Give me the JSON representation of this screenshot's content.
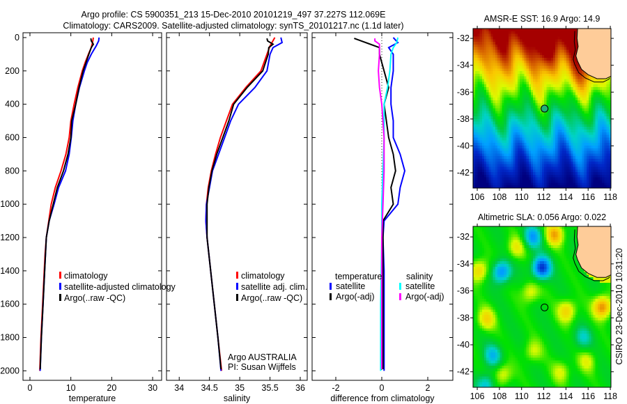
{
  "title_line1": "Argo profile: CS 5900351_213 15-Dec-2010 20101219_497 37.227S 112.069E",
  "title_line2": "Climatology: CARS2009. Satellite-adjusted climatology: synTS_20101217.nc (1.1d later)",
  "credit": "CSIRO 23-Dec-2010 10:31:20",
  "annotation": [
    "Argo AUSTRALIA",
    "PI: Susan Wijffels"
  ],
  "colors": {
    "climatology": "#ff0000",
    "satellite": "#0000ff",
    "argo": "#000000",
    "sal_satellite": "#00ffff",
    "sal_argo": "#ff00ff",
    "land": "#fecc99"
  },
  "chart_data": [
    {
      "type": "line",
      "xlabel": "temperature",
      "ylabel": "",
      "xlim": [
        -1.7,
        32.2
      ],
      "ylim": [
        2057,
        -29
      ],
      "xticks": [
        0,
        10,
        20,
        30
      ],
      "yticks": [
        0,
        200,
        400,
        600,
        800,
        1000,
        1200,
        1400,
        1600,
        1800,
        2000
      ],
      "legend": {
        "placement": "lower-middle",
        "entries": [
          "climatology",
          "satellite-adjusted climatology",
          "Argo(..raw -QC)"
        ]
      },
      "series": [
        {
          "name": "climatology",
          "color": "#ff0000",
          "points": [
            [
              0,
              15.5
            ],
            [
              30,
              15.3
            ],
            [
              60,
              15.0
            ],
            [
              100,
              14.3
            ],
            [
              150,
              13.5
            ],
            [
              200,
              12.8
            ],
            [
              300,
              11.7
            ],
            [
              400,
              10.8
            ],
            [
              500,
              10.0
            ],
            [
              600,
              9.6
            ],
            [
              700,
              8.8
            ],
            [
              800,
              7.6
            ],
            [
              900,
              6.2
            ],
            [
              1000,
              5.2
            ],
            [
              1100,
              4.6
            ],
            [
              1200,
              4.0
            ],
            [
              1300,
              3.7
            ],
            [
              1400,
              3.5
            ],
            [
              1600,
              3.1
            ],
            [
              1800,
              2.7
            ],
            [
              2000,
              2.4
            ]
          ]
        },
        {
          "name": "satellite-adjusted climatology",
          "color": "#0000ff",
          "points": [
            [
              0,
              16.9
            ],
            [
              20,
              16.8
            ],
            [
              50,
              16.2
            ],
            [
              100,
              15.0
            ],
            [
              150,
              14.0
            ],
            [
              200,
              13.3
            ],
            [
              300,
              12.1
            ],
            [
              400,
              11.2
            ],
            [
              500,
              10.5
            ],
            [
              600,
              10.1
            ],
            [
              700,
              9.6
            ],
            [
              800,
              8.7
            ],
            [
              900,
              7.0
            ],
            [
              1000,
              5.9
            ],
            [
              1100,
              4.7
            ],
            [
              1200,
              4.0
            ],
            [
              1400,
              3.6
            ],
            [
              1600,
              3.2
            ],
            [
              1800,
              2.8
            ],
            [
              2000,
              2.5
            ]
          ]
        },
        {
          "name": "Argo(..raw -QC)",
          "color": "#000000",
          "points": [
            [
              5,
              14.9
            ],
            [
              20,
              15.0
            ],
            [
              40,
              15.5
            ],
            [
              60,
              15.0
            ],
            [
              100,
              14.4
            ],
            [
              200,
              13.0
            ],
            [
              300,
              12.0
            ],
            [
              400,
              11.2
            ],
            [
              500,
              10.2
            ],
            [
              600,
              10.0
            ],
            [
              700,
              9.3
            ],
            [
              800,
              8.2
            ],
            [
              900,
              6.7
            ],
            [
              1000,
              5.7
            ],
            [
              1100,
              4.7
            ],
            [
              1200,
              4.0
            ],
            [
              1400,
              3.6
            ],
            [
              1600,
              3.2
            ],
            [
              1800,
              2.8
            ],
            [
              1990,
              2.5
            ]
          ]
        }
      ]
    },
    {
      "type": "line",
      "xlabel": "salinity",
      "xlim": [
        33.79,
        36.115
      ],
      "ylim": [
        2057,
        -29
      ],
      "xticks": [
        34,
        34.5,
        35,
        35.5,
        36
      ],
      "legend": {
        "placement": "lower-middle",
        "entries": [
          "climatology",
          "satellite adj. clim.",
          "Argo(..raw -QC)"
        ]
      },
      "series": [
        {
          "name": "climatology",
          "color": "#ff0000",
          "points": [
            [
              0,
              35.58
            ],
            [
              50,
              35.5
            ],
            [
              100,
              35.45
            ],
            [
              200,
              35.35
            ],
            [
              300,
              35.1
            ],
            [
              400,
              34.88
            ],
            [
              500,
              34.78
            ],
            [
              600,
              34.68
            ],
            [
              700,
              34.6
            ],
            [
              800,
              34.53
            ],
            [
              900,
              34.48
            ],
            [
              1000,
              34.45
            ],
            [
              1100,
              34.44
            ],
            [
              1200,
              34.46
            ],
            [
              1400,
              34.52
            ],
            [
              1600,
              34.58
            ],
            [
              1800,
              34.64
            ],
            [
              2000,
              34.7
            ]
          ]
        },
        {
          "name": "satellite adj. clim.",
          "color": "#0000ff",
          "points": [
            [
              0,
              35.68
            ],
            [
              30,
              35.7
            ],
            [
              60,
              35.55
            ],
            [
              100,
              35.5
            ],
            [
              200,
              35.45
            ],
            [
              300,
              35.25
            ],
            [
              400,
              34.98
            ],
            [
              500,
              34.85
            ],
            [
              600,
              34.75
            ],
            [
              700,
              34.65
            ],
            [
              800,
              34.55
            ],
            [
              900,
              34.5
            ],
            [
              1000,
              34.45
            ],
            [
              1100,
              34.44
            ],
            [
              1200,
              34.46
            ],
            [
              1400,
              34.52
            ],
            [
              1600,
              34.58
            ],
            [
              1800,
              34.64
            ],
            [
              2000,
              34.69
            ]
          ]
        },
        {
          "name": "Argo(..raw -QC)",
          "color": "#000000",
          "points": [
            [
              5,
              35.45
            ],
            [
              20,
              35.46
            ],
            [
              40,
              35.55
            ],
            [
              60,
              35.48
            ],
            [
              100,
              35.47
            ],
            [
              200,
              35.38
            ],
            [
              300,
              35.12
            ],
            [
              400,
              34.9
            ],
            [
              500,
              34.82
            ],
            [
              600,
              34.72
            ],
            [
              700,
              34.62
            ],
            [
              800,
              34.54
            ],
            [
              900,
              34.49
            ],
            [
              1000,
              34.46
            ],
            [
              1200,
              34.46
            ],
            [
              1400,
              34.52
            ],
            [
              1600,
              34.58
            ],
            [
              1800,
              34.64
            ],
            [
              1990,
              34.69
            ]
          ]
        }
      ]
    },
    {
      "type": "line",
      "xlabel": "difference from climatology",
      "xlim": [
        -3.03,
        3.09
      ],
      "ylim": [
        2057,
        -29
      ],
      "xticks": [
        -2,
        0,
        2
      ],
      "legend": {
        "placement": "lower-middle",
        "groups": [
          "temperature",
          "salinity"
        ],
        "entries": [
          "satellite",
          "Argo(-adj)",
          "satellite",
          "Argo(-adj)"
        ]
      },
      "series": [
        {
          "name": "temperature satellite",
          "color": "#0000ff",
          "points": [
            [
              0,
              0.5
            ],
            [
              30,
              0.7
            ],
            [
              60,
              0.3
            ],
            [
              100,
              0.5
            ],
            [
              200,
              0.5
            ],
            [
              300,
              0.4
            ],
            [
              400,
              0.4
            ],
            [
              500,
              0.5
            ],
            [
              600,
              0.5
            ],
            [
              700,
              0.8
            ],
            [
              800,
              1.0
            ],
            [
              900,
              0.8
            ],
            [
              1000,
              0.7
            ],
            [
              1100,
              0.1
            ],
            [
              1200,
              0.05
            ],
            [
              1400,
              0.1
            ],
            [
              1600,
              0.1
            ],
            [
              2000,
              0.1
            ]
          ]
        },
        {
          "name": "temperature Argo(-adj)",
          "color": "#000000",
          "points": [
            [
              5,
              -1.2
            ],
            [
              20,
              -0.9
            ],
            [
              40,
              -0.5
            ],
            [
              60,
              -0.1
            ],
            [
              100,
              -0.1
            ],
            [
              200,
              0.1
            ],
            [
              300,
              0.3
            ],
            [
              400,
              0.1
            ],
            [
              500,
              0.2
            ],
            [
              600,
              0.3
            ],
            [
              700,
              0.5
            ],
            [
              800,
              0.6
            ],
            [
              900,
              0.4
            ],
            [
              1000,
              0.5
            ],
            [
              1100,
              0.05
            ],
            [
              1200,
              0.05
            ],
            [
              1600,
              0.05
            ],
            [
              1990,
              0.05
            ]
          ]
        },
        {
          "name": "salinity satellite",
          "color": "#00ffff",
          "points": [
            [
              0,
              0.7
            ],
            [
              30,
              0.65
            ],
            [
              60,
              0.5
            ],
            [
              100,
              0.4
            ],
            [
              200,
              0.35
            ],
            [
              300,
              0.25
            ],
            [
              400,
              0.1
            ],
            [
              600,
              0.1
            ],
            [
              800,
              0.05
            ],
            [
              1000,
              0.0
            ],
            [
              1200,
              0.0
            ],
            [
              1600,
              -0.05
            ],
            [
              2000,
              -0.05
            ]
          ]
        },
        {
          "name": "salinity Argo(-adj)",
          "color": "#ff00ff",
          "points": [
            [
              5,
              -0.3
            ],
            [
              20,
              -0.3
            ],
            [
              40,
              -0.1
            ],
            [
              60,
              -0.1
            ],
            [
              100,
              -0.1
            ],
            [
              200,
              -0.15
            ],
            [
              300,
              -0.1
            ],
            [
              400,
              0.0
            ],
            [
              600,
              0.1
            ],
            [
              800,
              0.1
            ],
            [
              1000,
              0.05
            ],
            [
              1200,
              0.0
            ],
            [
              1600,
              0.0
            ],
            [
              1990,
              0.0
            ]
          ]
        }
      ]
    },
    {
      "type": "heatmap",
      "title": "AMSR-E SST: 16.9 Argo: 14.9",
      "xlim": [
        105.62,
        118.06
      ],
      "ylim": [
        -43.14,
        -31.27
      ],
      "xticks": [
        106,
        108,
        110,
        112,
        114,
        116,
        118
      ],
      "yticks": [
        -32,
        -34,
        -36,
        -38,
        -40,
        -42
      ],
      "float_position": {
        "lon": 112.069,
        "lat": -37.227
      }
    },
    {
      "type": "heatmap",
      "title": "Altimetric SLA: 0.056 Argo: 0.022",
      "xlim": [
        105.62,
        118.06
      ],
      "ylim": [
        -43.15,
        -31.22
      ],
      "xticks": [
        106,
        108,
        110,
        112,
        114,
        116,
        118
      ],
      "yticks": [
        -32,
        -34,
        -36,
        -38,
        -40,
        -42
      ],
      "float_position": {
        "lon": 112.069,
        "lat": -37.227
      }
    }
  ]
}
